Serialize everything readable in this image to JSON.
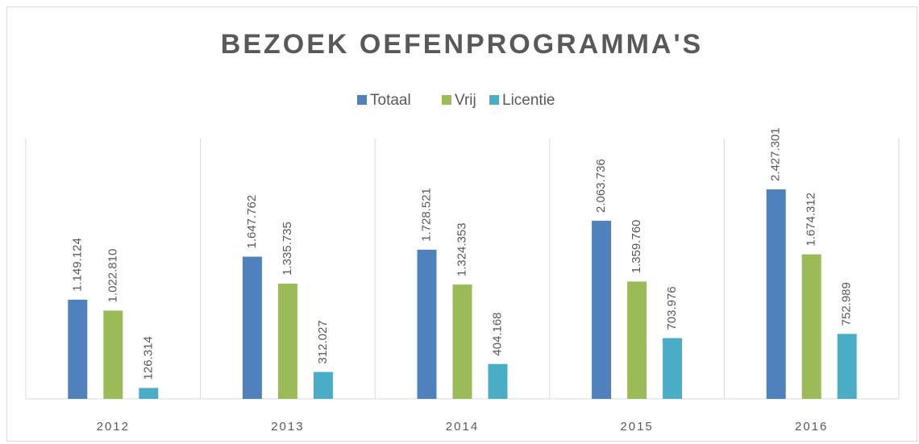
{
  "chart_data": {
    "type": "bar",
    "title": "BEZOEK OEFENPROGRAMMA'S",
    "categories": [
      "2012",
      "2013",
      "2014",
      "2015",
      "2016"
    ],
    "series": [
      {
        "name": "Totaal",
        "color": "#4f81bd",
        "values": [
          1149124,
          1647762,
          1728521,
          2063736,
          2427301
        ],
        "value_labels": [
          "1.149.124",
          "1.647.762",
          "1.728.521",
          "2.063.736",
          "2.427.301"
        ]
      },
      {
        "name": "Vrij",
        "color": "#9bbb59",
        "values": [
          1022810,
          1335735,
          1324353,
          1359760,
          1674312
        ],
        "value_labels": [
          "1.022.810",
          "1.335.735",
          "1.324.353",
          "1.359.760",
          "1.674.312"
        ]
      },
      {
        "name": "Licentie",
        "color": "#4bacc6",
        "values": [
          126314,
          312027,
          404168,
          703976,
          752989
        ],
        "value_labels": [
          "126.314",
          "312.027",
          "404.168",
          "703.976",
          "752.989"
        ]
      }
    ],
    "legend": "top"
  }
}
